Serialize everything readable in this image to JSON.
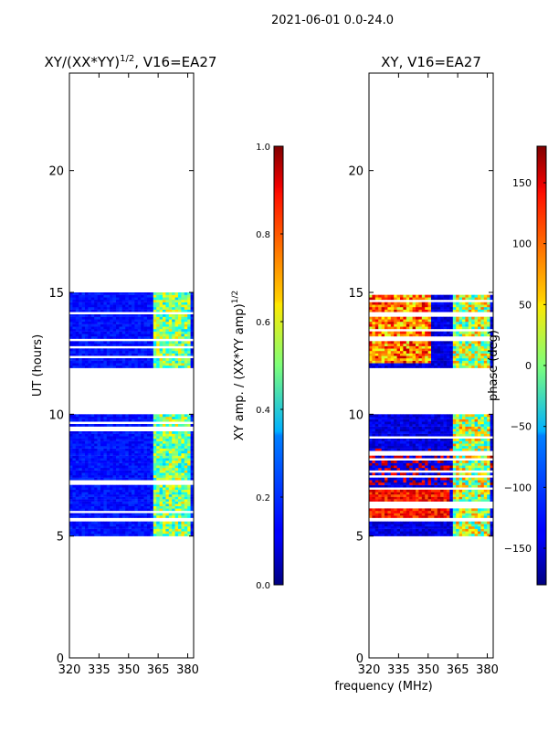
{
  "suptitle": "2021-06-01 0.0-24.0",
  "shared_xlabel": "frequency (MHz)",
  "chart_data": [
    {
      "type": "heatmap",
      "title_main": "XY/(XX*YY)",
      "title_sup": "1/2",
      "title_tail": ", V16=EA27",
      "ylabel": "UT (hours)",
      "xlim": [
        320,
        383
      ],
      "ylim": [
        0,
        24
      ],
      "xticks": [
        320,
        335,
        350,
        365,
        380
      ],
      "yticks": [
        0,
        5,
        10,
        15,
        20
      ],
      "colormap": "jet",
      "colorbar": {
        "label": "XY amp. / (XX*YY amp)",
        "label_sup": "1/2",
        "range": [
          0.0,
          1.0
        ],
        "ticks": [
          "0.0",
          "0.2",
          "0.4",
          "0.6",
          "0.8",
          "1.0"
        ],
        "tick_values": [
          0.0,
          0.2,
          0.4,
          0.6,
          0.8,
          1.0
        ]
      },
      "data_blocks_hours": [
        [
          5.0,
          5.6
        ],
        [
          5.75,
          7.0
        ],
        [
          7.0,
          8.6
        ],
        [
          8.6,
          10.0
        ],
        [
          11.9,
          15.0
        ]
      ],
      "typical_value": 0.1,
      "high_band_mhz": [
        362,
        381
      ],
      "high_band_value": 0.5
    },
    {
      "type": "heatmap",
      "title_main": "XY, V16=EA27",
      "xlim": [
        320,
        383
      ],
      "ylim": [
        0,
        24
      ],
      "xticks": [
        320,
        335,
        350,
        365,
        380
      ],
      "yticks": [
        0,
        5,
        10,
        15,
        20
      ],
      "colormap": "jet",
      "colorbar": {
        "label": "phase (deg)",
        "range": [
          -180,
          180
        ],
        "ticks": [
          "−150",
          "−100",
          "−50",
          "0",
          "50",
          "100",
          "150"
        ],
        "tick_values": [
          -150,
          -100,
          -50,
          0,
          50,
          100,
          150
        ]
      },
      "data_blocks_hours": [
        [
          5.0,
          5.6
        ],
        [
          5.75,
          7.0
        ],
        [
          7.0,
          8.6
        ],
        [
          8.6,
          10.0
        ],
        [
          11.9,
          15.0
        ]
      ],
      "typical_value": -165,
      "high_band_mhz": [
        362,
        381
      ],
      "high_band_value": 20
    }
  ]
}
